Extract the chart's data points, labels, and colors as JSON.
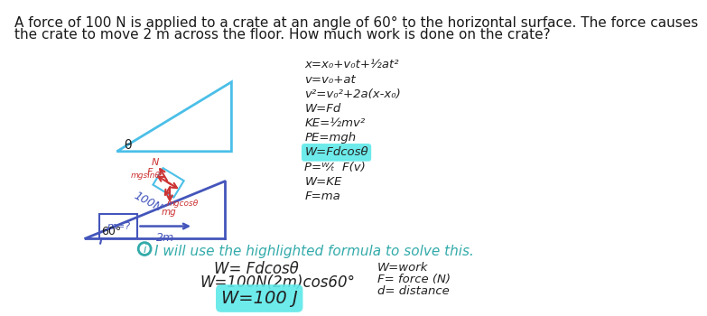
{
  "title_line1": "A force of 100 N is applied to a crate at an angle of 60° to the horizontal surface. The force causes",
  "title_line2": "the crate to move 2 m across the floor. How much work is done on the crate?",
  "bg_color": "#ffffff",
  "title_color": "#1a1a1a",
  "title_fontsize": 11.0,
  "diagram1_color": "#4bbfe8",
  "diagram1_arrow_color": "#cc3333",
  "diagram2_color": "#4455bb",
  "formulas_color": "#222222",
  "formula_list": [
    "x=x₀+v₀t+½at²",
    "v=v₀+at",
    "v²=v₀²+2a(x-x₀)",
    "W=Fd",
    "KE=½mv²",
    "PE=mgh",
    "W=Fdcosθ",
    "P=ᵂ⁄ₜ  F(v)",
    "W=KE",
    "F=ma"
  ],
  "highlight_formula_idx": 6,
  "highlight_color": "#5de8e8",
  "solution_color": "#33aaaa",
  "solution_fontsize": 12,
  "work_formula": "W= Fdcosθ",
  "work_substitution": "W=100N(2m)cos60°",
  "work_answer": "W=100 J",
  "work_color": "#222222",
  "work_fontsize": 12,
  "highlight_answer_color": "#5de8e8",
  "legend_work": "W=work",
  "legend_force": "F= force (N)",
  "legend_dist": "d= distance",
  "legend_color": "#222222",
  "legend_fontsize": 9.5
}
